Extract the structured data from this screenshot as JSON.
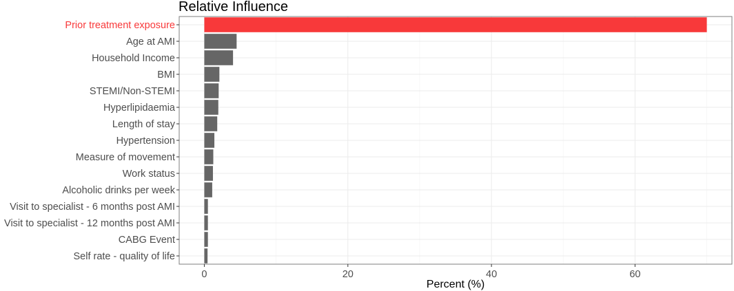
{
  "chart_data": {
    "type": "bar",
    "orientation": "horizontal",
    "title": "Relative Influence",
    "xlabel": "Percent (%)",
    "ylabel": "",
    "categories": [
      "Prior treatment exposure",
      "Age at AMI",
      "Household Income",
      "BMI",
      "STEMI/Non-STEMI",
      "Hyperlipidaemia",
      "Length of stay",
      "Hypertension",
      "Measure of movement",
      "Work status",
      "Alcoholic drinks per week",
      "Visit to specialist - 6 months post AMI",
      "Visit to specialist - 12 months post AMI",
      "CABG Event",
      "Self rate - quality of life"
    ],
    "values": [
      70.0,
      4.5,
      4.0,
      2.1,
      2.0,
      1.95,
      1.8,
      1.4,
      1.25,
      1.2,
      1.1,
      0.5,
      0.5,
      0.5,
      0.45
    ],
    "xlim": [
      -3.5,
      73.5
    ],
    "xticks": [
      0,
      20,
      40,
      60
    ],
    "grid": true,
    "highlight_index": 0,
    "colors": {
      "highlight": "#F8393A",
      "bar": "#666666",
      "highlight_label": "#F8393A",
      "label": "#4D4D4D",
      "grid_major": "#EBEBEB",
      "grid_minor": "#F5F5F5",
      "panel_border": "#7F7F7F",
      "title": "#000000"
    }
  }
}
